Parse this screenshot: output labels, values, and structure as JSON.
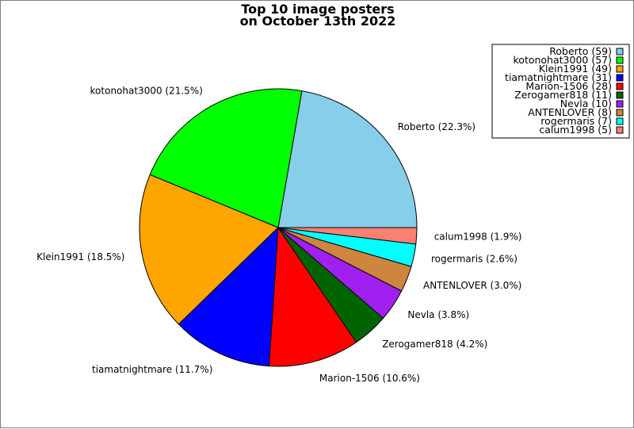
{
  "chart_data": {
    "type": "pie",
    "title": "Top 10 image posters",
    "subtitle": "on October 13th 2022",
    "slices": [
      {
        "label": "Roberto",
        "value": 59,
        "percent_label": "Roberto (22.3%)",
        "legend_label": "Roberto (59)",
        "color": "#87ceeb"
      },
      {
        "label": "kotonohat3000",
        "value": 57,
        "percent_label": "kotonohat3000 (21.5%)",
        "legend_label": "kotonohat3000 (57)",
        "color": "#00ff00"
      },
      {
        "label": "Klein1991",
        "value": 49,
        "percent_label": "Klein1991 (18.5%)",
        "legend_label": "Klein1991 (49)",
        "color": "#ffa500"
      },
      {
        "label": "tiamatnightmare",
        "value": 31,
        "percent_label": "tiamatnightmare (11.7%)",
        "legend_label": "tiamatnightmare (31)",
        "color": "#0000ff"
      },
      {
        "label": "Marion-1506",
        "value": 28,
        "percent_label": "Marion-1506 (10.6%)",
        "legend_label": "Marion-1506 (28)",
        "color": "#ff0000"
      },
      {
        "label": "Zerogamer818",
        "value": 11,
        "percent_label": "Zerogamer818 (4.2%)",
        "legend_label": "Zerogamer818 (11)",
        "color": "#006400"
      },
      {
        "label": "Nevla",
        "value": 10,
        "percent_label": "Nevla (3.8%)",
        "legend_label": "Nevla (10)",
        "color": "#a020f0"
      },
      {
        "label": "ANTENLOVER",
        "value": 8,
        "percent_label": "ANTENLOVER (3.0%)",
        "legend_label": "ANTENLOVER (8)",
        "color": "#cd853f"
      },
      {
        "label": "rogermaris",
        "value": 7,
        "percent_label": "rogermaris (2.6%)",
        "legend_label": "rogermaris (7)",
        "color": "#00ffff"
      },
      {
        "label": "calum1998",
        "value": 5,
        "percent_label": "calum1998 (1.9%)",
        "legend_label": "calum1998 (5)",
        "color": "#fa8072"
      }
    ],
    "start": "3 o'clock",
    "direction": "counterclockwise",
    "legend_placement": "top-right"
  }
}
